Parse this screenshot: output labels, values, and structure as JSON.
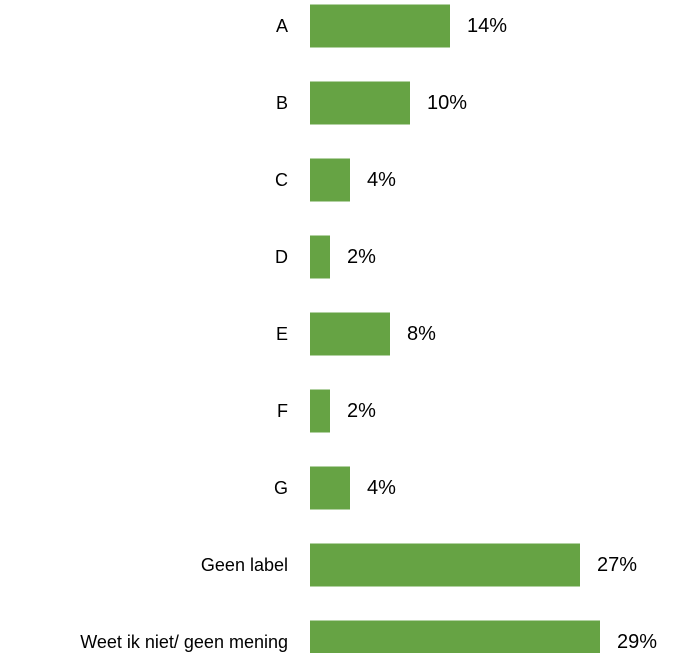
{
  "chart_data": {
    "type": "bar",
    "orientation": "horizontal",
    "categories": [
      "A",
      "B",
      "C",
      "D",
      "E",
      "F",
      "G",
      "Geen label",
      "Weet ik niet/ geen mening"
    ],
    "values": [
      14,
      10,
      4,
      2,
      8,
      2,
      4,
      27,
      29
    ],
    "value_labels": [
      "14%",
      "10%",
      "4%",
      "2%",
      "8%",
      "2%",
      "4%",
      "27%",
      "29%"
    ],
    "unit": "%",
    "title": "",
    "xlabel": "",
    "ylabel": "",
    "grid": false,
    "legend": "none",
    "bar_color": "#66A344"
  }
}
